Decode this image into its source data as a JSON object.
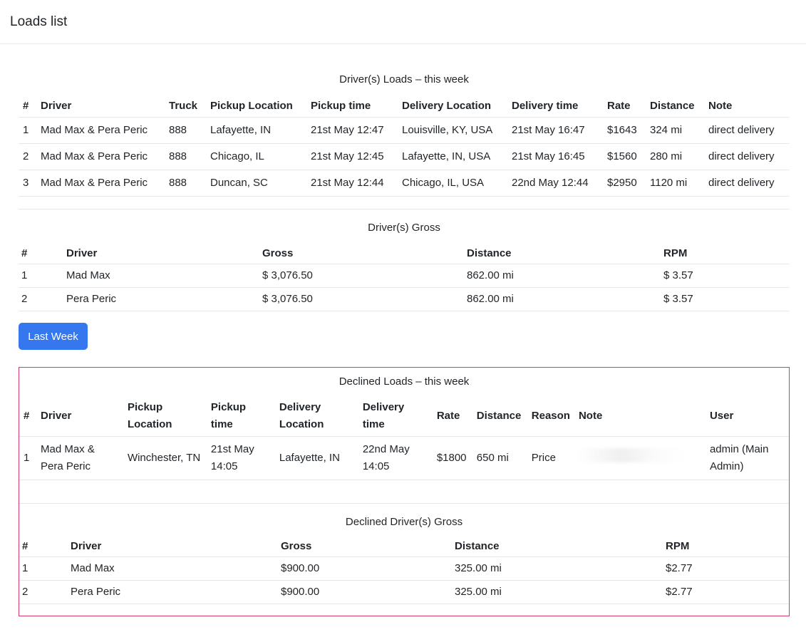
{
  "header": {
    "title": "Loads list"
  },
  "loads": {
    "title": "Driver(s) Loads – this week",
    "columns": [
      "#",
      "Driver",
      "Truck",
      "Pickup Location",
      "Pickup time",
      "Delivery Location",
      "Delivery time",
      "Rate",
      "Distance",
      "Note"
    ],
    "rows": [
      [
        "1",
        "Mad Max & Pera Peric",
        "888",
        "Lafayette, IN",
        "21st May 12:47",
        "Louisville, KY, USA",
        "21st May 16:47",
        "$1643",
        "324 mi",
        "direct delivery"
      ],
      [
        "2",
        "Mad Max & Pera Peric",
        "888",
        "Chicago, IL",
        "21st May 12:45",
        "Lafayette, IN, USA",
        "21st May 16:45",
        "$1560",
        "280 mi",
        "direct delivery"
      ],
      [
        "3",
        "Mad Max & Pera Peric",
        "888",
        "Duncan, SC",
        "21st May 12:44",
        "Chicago, IL, USA",
        "22nd May 12:44",
        "$2950",
        "1120 mi",
        "direct delivery"
      ]
    ]
  },
  "gross": {
    "title": "Driver(s) Gross",
    "columns": [
      "#",
      "Driver",
      "Gross",
      "Distance",
      "RPM"
    ],
    "rows": [
      [
        "1",
        "Mad Max",
        "$ 3,076.50",
        "862.00 mi",
        "$ 3.57"
      ],
      [
        "2",
        "Pera Peric",
        "$ 3,076.50",
        "862.00 mi",
        "$ 3.57"
      ]
    ]
  },
  "last_week_button": "Last Week",
  "declined": {
    "title": "Declined Loads – this week",
    "columns": [
      "#",
      "Driver",
      "Pickup Location",
      "Pickup time",
      "Delivery Location",
      "Delivery time",
      "Rate",
      "Distance",
      "Reason",
      "Note",
      "User"
    ],
    "rows": [
      [
        "1",
        "Mad Max & Pera Peric",
        "Winchester, TN",
        "21st May 14:05",
        "Lafayette, IN",
        "22nd May 14:05",
        "$1800",
        "650 mi",
        "Price",
        "",
        "admin (Main Admin)"
      ]
    ]
  },
  "declined_gross": {
    "title": "Declined Driver(s) Gross",
    "columns": [
      "#",
      "Driver",
      "Gross",
      "Distance",
      "RPM"
    ],
    "rows": [
      [
        "1",
        "Mad Max",
        "$900.00",
        "325.00 mi",
        "$2.77"
      ],
      [
        "2",
        "Pera Peric",
        "$900.00",
        "325.00 mi",
        "$2.77"
      ]
    ]
  },
  "colors": {
    "primary_button": "#3577ef",
    "declined_border": "#d63a66"
  }
}
